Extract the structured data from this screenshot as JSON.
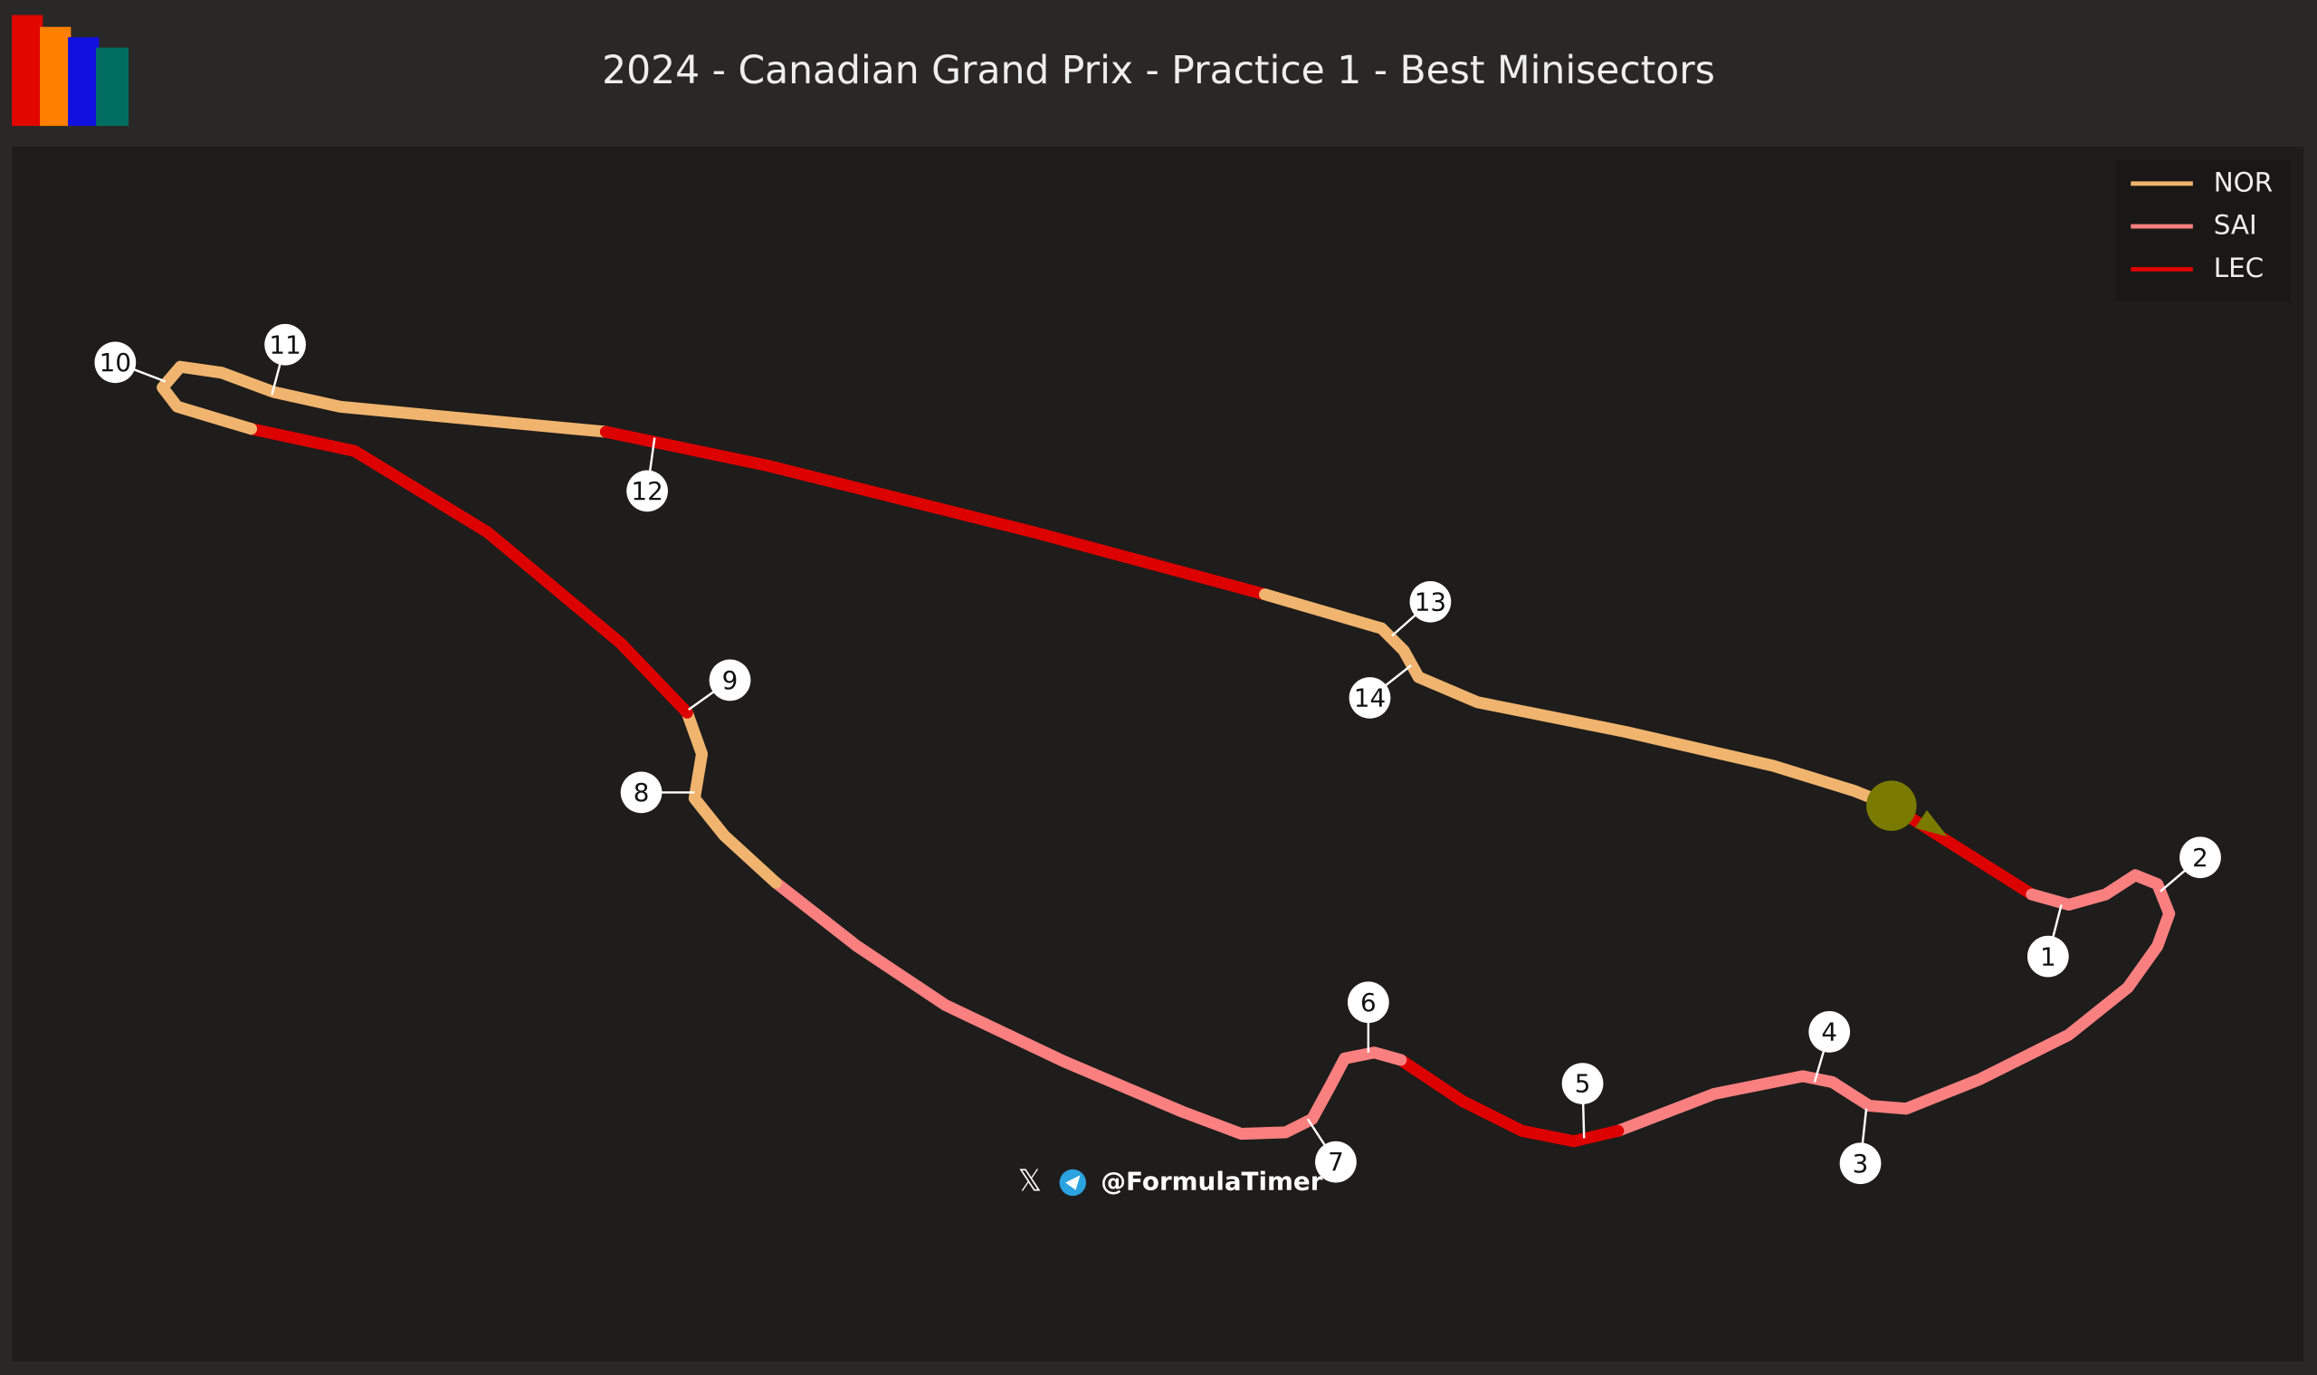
{
  "title": "2024 - Canadian Grand Prix - Practice 1 - Best Minisectors",
  "legend": [
    {
      "name": "NOR",
      "color": "#f0b46e"
    },
    {
      "name": "SAI",
      "color": "#fa8080"
    },
    {
      "name": "LEC",
      "color": "#dc0000"
    }
  ],
  "corners": [
    "1",
    "2",
    "3",
    "4",
    "5",
    "6",
    "7",
    "8",
    "9",
    "10",
    "11",
    "12",
    "13",
    "14"
  ],
  "watermark": "@FormulaTimer"
}
